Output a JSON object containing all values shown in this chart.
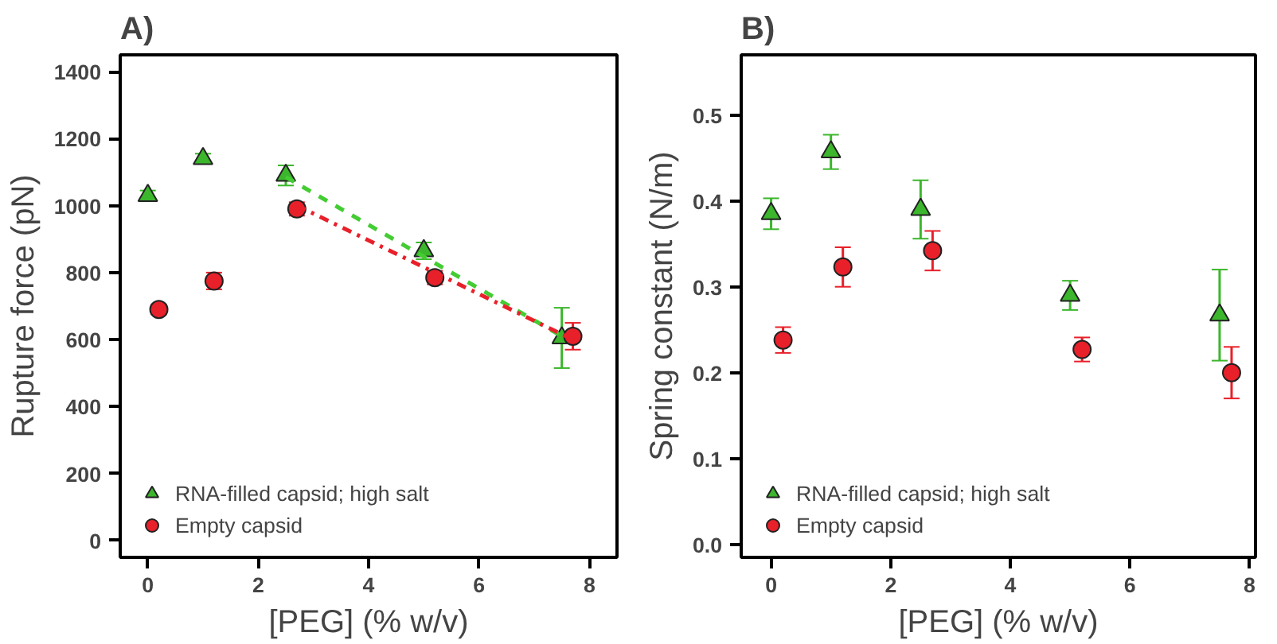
{
  "chart_data": [
    {
      "type": "scatter",
      "title": "A)",
      "xlabel": "[PEG] (% w/v)",
      "ylabel": "Rupture force (pN)",
      "xlim": [
        -0.5,
        8.5
      ],
      "xticks": [
        0,
        2,
        4,
        6,
        8
      ],
      "ylim": [
        -50,
        1450
      ],
      "yticks": [
        0,
        200,
        400,
        600,
        800,
        1000,
        1200,
        1400
      ],
      "grid": false,
      "legend": "bottom left",
      "series": [
        {
          "name": "RNA-filled capsid; high salt",
          "color": "#3cb62c",
          "marker": "triangle",
          "x": [
            0,
            1,
            2.5,
            5,
            7.5
          ],
          "values": [
            1030,
            1140,
            1090,
            865,
            605
          ],
          "errors": [
            15,
            15,
            30,
            25,
            90
          ]
        },
        {
          "name": "Empty capsid",
          "color": "#e8202a",
          "marker": "circle",
          "x": [
            0.2,
            1.2,
            2.7,
            5.2,
            7.7
          ],
          "values": [
            690,
            775,
            990,
            785,
            610
          ],
          "errors": [
            15,
            25,
            20,
            20,
            40
          ]
        },
        {
          "type": "line",
          "color": "#44cc33",
          "line_style": "dashed",
          "x": [
            2.5,
            7.5
          ],
          "values": [
            1085,
            610
          ]
        },
        {
          "type": "line",
          "color": "#e8202a",
          "line_style": "dashdot",
          "x": [
            2.7,
            7.7
          ],
          "values": [
            1000,
            600
          ]
        }
      ]
    },
    {
      "type": "scatter",
      "title": "B)",
      "xlabel": "[PEG] (% w/v)",
      "ylabel": "Spring constant (N/m)",
      "xlim": [
        -0.5,
        8.1
      ],
      "xticks": [
        0,
        2,
        4,
        6,
        8
      ],
      "ylim": [
        -0.015,
        0.57
      ],
      "yticks": [
        {
          "value": 0,
          "label": "0.0"
        },
        0.1,
        0.2,
        0.3,
        0.4,
        0.5
      ],
      "grid": false,
      "legend": "bottom left",
      "series": [
        {
          "name": "RNA-filled capsid; high salt",
          "color": "#3cb62c",
          "marker": "triangle",
          "x": [
            0,
            1,
            2.5,
            5,
            7.5
          ],
          "values": [
            0.385,
            0.457,
            0.39,
            0.29,
            0.267
          ],
          "errors": [
            0.018,
            0.02,
            0.034,
            0.017,
            0.053
          ]
        },
        {
          "name": "Empty capsid",
          "color": "#e8202a",
          "marker": "circle",
          "x": [
            0.2,
            1.2,
            2.7,
            5.2,
            7.7
          ],
          "values": [
            0.238,
            0.323,
            0.342,
            0.227,
            0.2
          ],
          "errors": [
            0.015,
            0.023,
            0.023,
            0.014,
            0.03
          ]
        }
      ]
    }
  ]
}
